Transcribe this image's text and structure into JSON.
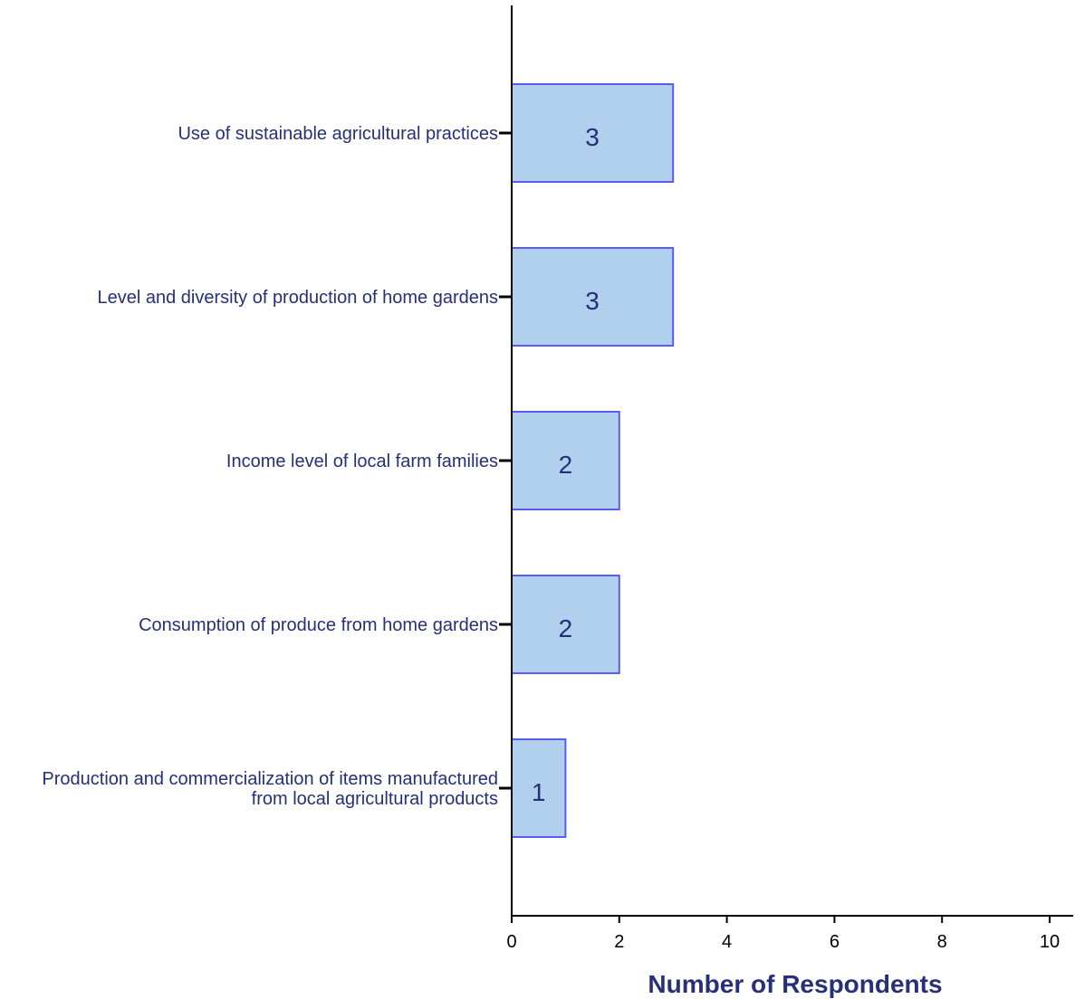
{
  "chart_data": {
    "type": "bar",
    "orientation": "horizontal",
    "categories": [
      "Use of sustainable agricultural practices",
      "Level and diversity of production of home gardens",
      "Income level of local farm families",
      "Consumption of produce from home gardens",
      "Production and commercialization of items manufactured from local agricultural products"
    ],
    "category_label_lines": [
      [
        "Use of sustainable agricultural practices"
      ],
      [
        "Level and diversity of production of home gardens"
      ],
      [
        "Income level of local farm families"
      ],
      [
        "Consumption of produce from home gardens"
      ],
      [
        "Production and commercialization of items manufactured",
        "from local agricultural products"
      ]
    ],
    "values": [
      3,
      3,
      2,
      2,
      1
    ],
    "data_labels": [
      "3",
      "3",
      "2",
      "2",
      "1"
    ],
    "title": "",
    "xlabel": "Number of Respondents",
    "ylabel": "",
    "xlim": [
      0,
      10
    ],
    "xticks": [
      "0",
      "2",
      "4",
      "6",
      "8",
      "10"
    ],
    "grid": false,
    "legend": "none",
    "colors": {
      "bar_fill": "#b0d0ee",
      "bar_stroke": "#5b5bf0",
      "text": "#26307a",
      "axis": "#000000"
    }
  }
}
